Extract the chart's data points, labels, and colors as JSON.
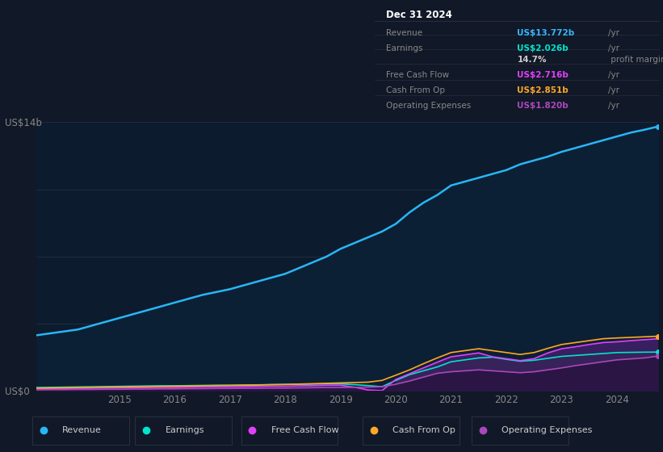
{
  "background_color": "#111827",
  "plot_bg_color": "#0d1b2e",
  "plot_bg_color2": "#0a1520",
  "title_box_bg": "#05080f",
  "title_box_border": "#2a2d3a",
  "title_box": {
    "date": "Dec 31 2024",
    "rows": [
      {
        "label": "Revenue",
        "value": "US$13.772b",
        "unit": "/yr",
        "value_color": "#38b6ff"
      },
      {
        "label": "Earnings",
        "value": "US$2.026b",
        "unit": "/yr",
        "value_color": "#00e5cc"
      },
      {
        "label": "",
        "value": "14.7%",
        "unit": " profit margin",
        "value_color": "#cccccc"
      },
      {
        "label": "Free Cash Flow",
        "value": "US$2.716b",
        "unit": "/yr",
        "value_color": "#e040fb"
      },
      {
        "label": "Cash From Op",
        "value": "US$2.851b",
        "unit": "/yr",
        "value_color": "#ffa726"
      },
      {
        "label": "Operating Expenses",
        "value": "US$1.820b",
        "unit": "/yr",
        "value_color": "#ab47bc"
      }
    ]
  },
  "years": [
    2013.5,
    2013.75,
    2014.0,
    2014.25,
    2014.5,
    2014.75,
    2015.0,
    2015.25,
    2015.5,
    2015.75,
    2016.0,
    2016.25,
    2016.5,
    2016.75,
    2017.0,
    2017.25,
    2017.5,
    2017.75,
    2018.0,
    2018.25,
    2018.5,
    2018.75,
    2019.0,
    2019.25,
    2019.5,
    2019.75,
    2020.0,
    2020.25,
    2020.5,
    2020.75,
    2021.0,
    2021.25,
    2021.5,
    2021.75,
    2022.0,
    2022.25,
    2022.5,
    2022.75,
    2023.0,
    2023.25,
    2023.5,
    2023.75,
    2024.0,
    2024.25,
    2024.5,
    2024.75
  ],
  "revenue": [
    2.9,
    3.0,
    3.1,
    3.2,
    3.4,
    3.6,
    3.8,
    4.0,
    4.2,
    4.4,
    4.6,
    4.8,
    5.0,
    5.15,
    5.3,
    5.5,
    5.7,
    5.9,
    6.1,
    6.4,
    6.7,
    7.0,
    7.4,
    7.7,
    8.0,
    8.3,
    8.7,
    9.3,
    9.8,
    10.2,
    10.7,
    10.9,
    11.1,
    11.3,
    11.5,
    11.8,
    12.0,
    12.2,
    12.45,
    12.65,
    12.85,
    13.05,
    13.25,
    13.45,
    13.6,
    13.772
  ],
  "earnings": [
    0.18,
    0.19,
    0.2,
    0.21,
    0.22,
    0.23,
    0.24,
    0.25,
    0.26,
    0.27,
    0.27,
    0.28,
    0.29,
    0.3,
    0.3,
    0.31,
    0.32,
    0.33,
    0.34,
    0.35,
    0.36,
    0.37,
    0.37,
    0.33,
    0.28,
    0.22,
    0.55,
    0.85,
    1.05,
    1.25,
    1.52,
    1.62,
    1.72,
    1.76,
    1.65,
    1.55,
    1.6,
    1.7,
    1.8,
    1.85,
    1.9,
    1.95,
    2.0,
    2.01,
    2.02,
    2.026
  ],
  "free_cash_flow": [
    0.12,
    0.13,
    0.14,
    0.14,
    0.15,
    0.16,
    0.17,
    0.17,
    0.18,
    0.19,
    0.19,
    0.2,
    0.21,
    0.22,
    0.22,
    0.23,
    0.24,
    0.25,
    0.25,
    0.27,
    0.28,
    0.3,
    0.3,
    0.2,
    0.05,
    0.02,
    0.6,
    0.9,
    1.2,
    1.5,
    1.78,
    1.88,
    1.98,
    1.78,
    1.68,
    1.58,
    1.68,
    1.98,
    2.2,
    2.3,
    2.42,
    2.52,
    2.56,
    2.62,
    2.67,
    2.716
  ],
  "cash_from_op": [
    0.15,
    0.16,
    0.17,
    0.18,
    0.19,
    0.2,
    0.21,
    0.22,
    0.23,
    0.24,
    0.25,
    0.26,
    0.27,
    0.28,
    0.29,
    0.3,
    0.31,
    0.33,
    0.34,
    0.36,
    0.38,
    0.4,
    0.42,
    0.44,
    0.46,
    0.55,
    0.82,
    1.1,
    1.42,
    1.72,
    2.0,
    2.1,
    2.2,
    2.1,
    2.0,
    1.9,
    2.0,
    2.22,
    2.42,
    2.52,
    2.62,
    2.72,
    2.76,
    2.79,
    2.82,
    2.851
  ],
  "op_expenses": [
    0.06,
    0.07,
    0.07,
    0.08,
    0.08,
    0.09,
    0.09,
    0.1,
    0.1,
    0.11,
    0.11,
    0.12,
    0.12,
    0.13,
    0.13,
    0.14,
    0.14,
    0.15,
    0.15,
    0.16,
    0.17,
    0.18,
    0.18,
    0.19,
    0.2,
    0.22,
    0.35,
    0.52,
    0.72,
    0.92,
    1.0,
    1.05,
    1.1,
    1.05,
    1.0,
    0.95,
    1.0,
    1.1,
    1.2,
    1.32,
    1.42,
    1.52,
    1.62,
    1.67,
    1.72,
    1.82
  ],
  "revenue_color": "#29b6f6",
  "earnings_color": "#00e5cc",
  "fcf_color": "#e040fb",
  "cashop_color": "#ffa726",
  "opex_color": "#ab47bc",
  "revenue_fill": "#0d2a3f",
  "earnings_fill": "#0a2a25",
  "opex_fill": "#2d1a50",
  "ylim": [
    0,
    14
  ],
  "yticks": [
    0,
    14
  ],
  "ytick_labels": [
    "US$0",
    "US$14b"
  ],
  "grid_y_values": [
    0,
    3.5,
    7.0,
    10.5,
    14
  ],
  "xlabel_years": [
    2015,
    2016,
    2017,
    2018,
    2019,
    2020,
    2021,
    2022,
    2023,
    2024
  ],
  "legend_items": [
    {
      "label": "Revenue",
      "color": "#29b6f6"
    },
    {
      "label": "Earnings",
      "color": "#00e5cc"
    },
    {
      "label": "Free Cash Flow",
      "color": "#e040fb"
    },
    {
      "label": "Cash From Op",
      "color": "#ffa726"
    },
    {
      "label": "Operating Expenses",
      "color": "#ab47bc"
    }
  ]
}
